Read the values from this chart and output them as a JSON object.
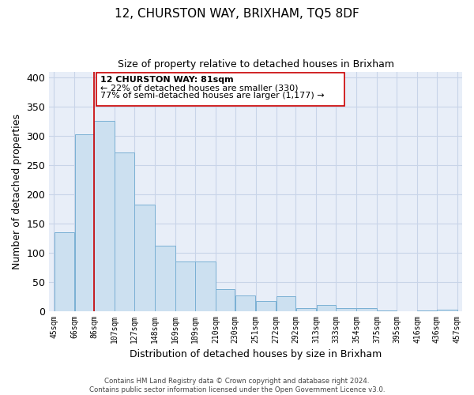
{
  "title": "12, CHURSTON WAY, BRIXHAM, TQ5 8DF",
  "subtitle": "Size of property relative to detached houses in Brixham",
  "xlabel": "Distribution of detached houses by size in Brixham",
  "ylabel": "Number of detached properties",
  "bar_left_edges": [
    45,
    66,
    86,
    107,
    127,
    148,
    169,
    189,
    210,
    230,
    251,
    272,
    292,
    313,
    333,
    354,
    375,
    395,
    416,
    436
  ],
  "bar_widths": [
    21,
    20,
    21,
    20,
    21,
    21,
    20,
    21,
    20,
    21,
    21,
    20,
    21,
    20,
    21,
    21,
    20,
    21,
    20,
    21
  ],
  "bar_heights": [
    135,
    302,
    325,
    271,
    182,
    112,
    84,
    84,
    37,
    27,
    17,
    25,
    5,
    10,
    5,
    5,
    1,
    0,
    1,
    2
  ],
  "bar_color": "#cce0f0",
  "bar_edge_color": "#7ab0d4",
  "x_tick_labels": [
    "45sqm",
    "66sqm",
    "86sqm",
    "107sqm",
    "127sqm",
    "148sqm",
    "169sqm",
    "189sqm",
    "210sqm",
    "230sqm",
    "251sqm",
    "272sqm",
    "292sqm",
    "313sqm",
    "333sqm",
    "354sqm",
    "375sqm",
    "395sqm",
    "416sqm",
    "436sqm",
    "457sqm"
  ],
  "x_tick_positions": [
    45,
    66,
    86,
    107,
    127,
    148,
    169,
    189,
    210,
    230,
    251,
    272,
    292,
    313,
    333,
    354,
    375,
    395,
    416,
    436,
    457
  ],
  "ylim": [
    0,
    410
  ],
  "xlim": [
    40,
    462
  ],
  "yticks": [
    0,
    50,
    100,
    150,
    200,
    250,
    300,
    350,
    400
  ],
  "property_line_x": 86,
  "property_line_color": "#cc0000",
  "annotation_title": "12 CHURSTON WAY: 81sqm",
  "annotation_line1": "← 22% of detached houses are smaller (330)",
  "annotation_line2": "77% of semi-detached houses are larger (1,177) →",
  "footer_line1": "Contains HM Land Registry data © Crown copyright and database right 2024.",
  "footer_line2": "Contains public sector information licensed under the Open Government Licence v3.0.",
  "grid_color": "#c8d4e8",
  "background_color": "#e8eef8"
}
